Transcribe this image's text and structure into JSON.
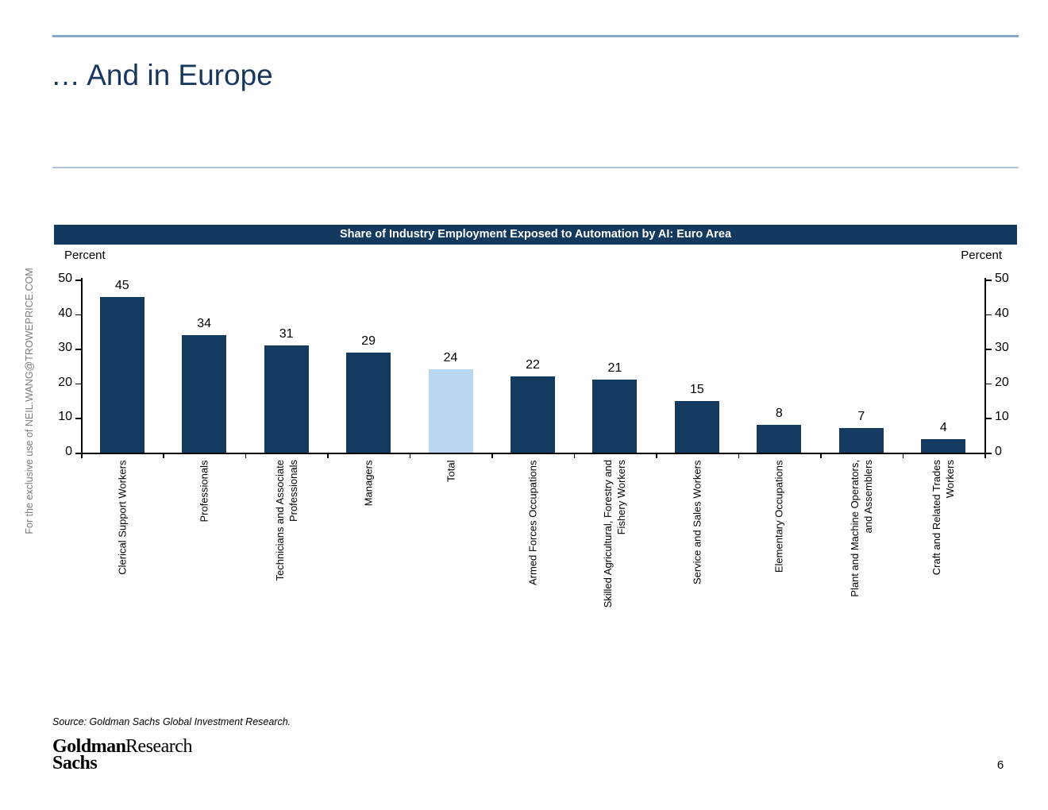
{
  "slide": {
    "title": "… And in Europe",
    "watermark": "For the exclusive use of NEIL.WANG@TROWEPRICE.COM",
    "source_note": "Source: Goldman Sachs Global Investment Research.",
    "logo_line1": "Goldman",
    "logo_line2": "Sachs",
    "logo_division": "Research",
    "page_number": "6"
  },
  "chart_data": {
    "type": "bar",
    "title": "Share of Industry Employment Exposed to Automation by AI: Euro Area",
    "ylabel_left": "Percent",
    "ylabel_right": "Percent",
    "ylim": [
      0,
      50
    ],
    "yticks": [
      0,
      10,
      20,
      30,
      40,
      50
    ],
    "grid": false,
    "legend": "none",
    "categories": [
      [
        "Clerical Support Workers"
      ],
      [
        "Professionals"
      ],
      [
        "Technicians and Associate",
        "Professionals"
      ],
      [
        "Managers"
      ],
      [
        "Total"
      ],
      [
        "Armed Forces Occupations"
      ],
      [
        "Skilled Agricultural, Forestry and",
        "Fishery Workers"
      ],
      [
        "Service and Sales Workers"
      ],
      [
        "Elementary Occupations"
      ],
      [
        "Plant and Machine Operators,",
        "and Assemblers"
      ],
      [
        "Craft and Related Trades",
        "Workers"
      ]
    ],
    "values": [
      45,
      34,
      31,
      29,
      24,
      22,
      21,
      15,
      8,
      7,
      4
    ],
    "highlight_index": 4,
    "colors": {
      "bar": "#143a5f",
      "highlight_bar": "#b9d7ef",
      "title_bg": "#13395e",
      "title_text": "#ffffff",
      "axis": "#000000"
    }
  }
}
